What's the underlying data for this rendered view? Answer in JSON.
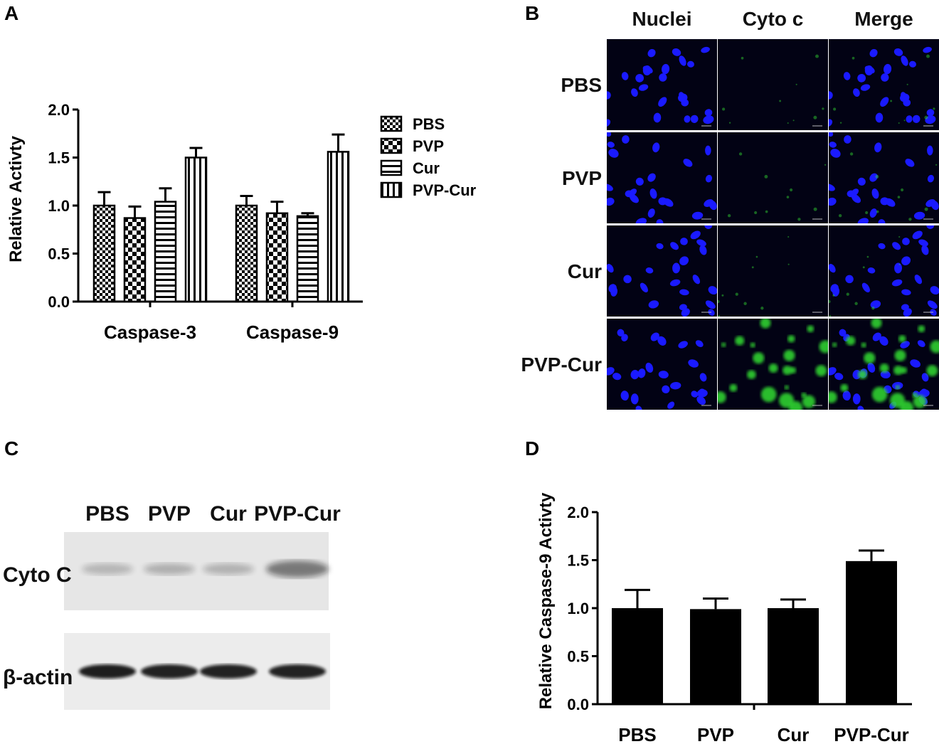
{
  "panels": {
    "a": "A",
    "b": "B",
    "c": "C",
    "d": "D"
  },
  "chart_data": [
    {
      "panel": "A",
      "type": "bar",
      "ylabel": "Relative Activty",
      "ylim": [
        0,
        2.0
      ],
      "yticks": [
        "0.0",
        "0.5",
        "1.0",
        "1.5",
        "2.0"
      ],
      "categories": [
        "Caspase-3",
        "Caspase-9"
      ],
      "legend_position": "right",
      "series": [
        {
          "name": "PBS",
          "pattern": "checker-small",
          "values": [
            1.0,
            1.0
          ],
          "errors": [
            0.14,
            0.1
          ]
        },
        {
          "name": "PVP",
          "pattern": "checker-large",
          "values": [
            0.87,
            0.92
          ],
          "errors": [
            0.12,
            0.12
          ]
        },
        {
          "name": "Cur",
          "pattern": "horizontal-lines",
          "values": [
            1.04,
            0.89
          ],
          "errors": [
            0.14,
            0.03
          ]
        },
        {
          "name": "PVP-Cur",
          "pattern": "vertical-lines",
          "values": [
            1.5,
            1.56
          ],
          "errors": [
            0.1,
            0.18
          ]
        }
      ]
    },
    {
      "panel": "D",
      "type": "bar",
      "ylabel": "Relative Caspase-9 Activty",
      "ylim": [
        0,
        2.0
      ],
      "yticks": [
        "0.0",
        "0.5",
        "1.0",
        "1.5",
        "2.0"
      ],
      "categories": [
        "PBS",
        "PVP",
        "Cur",
        "PVP-Cur"
      ],
      "values": [
        1.0,
        0.99,
        1.0,
        1.49
      ],
      "errors": [
        0.19,
        0.11,
        0.09,
        0.11
      ],
      "color": "#000000"
    }
  ],
  "microscopy": {
    "columns": [
      "Nuclei",
      "Cyto c",
      "Merge"
    ],
    "rows": [
      "PBS",
      "PVP",
      "Cur",
      "PVP-Cur"
    ],
    "nuclei_color": "#1a1aff",
    "cyto_color": "#33dd33",
    "background": "#020214"
  },
  "western": {
    "lanes": [
      "PBS",
      "PVP",
      "Cur",
      "PVP-Cur"
    ],
    "bands": [
      {
        "label": "Cyto C",
        "intensity": [
          0.22,
          0.25,
          0.24,
          0.5
        ]
      },
      {
        "label": "β-actin",
        "intensity": [
          0.92,
          0.9,
          0.9,
          0.9
        ]
      }
    ]
  }
}
